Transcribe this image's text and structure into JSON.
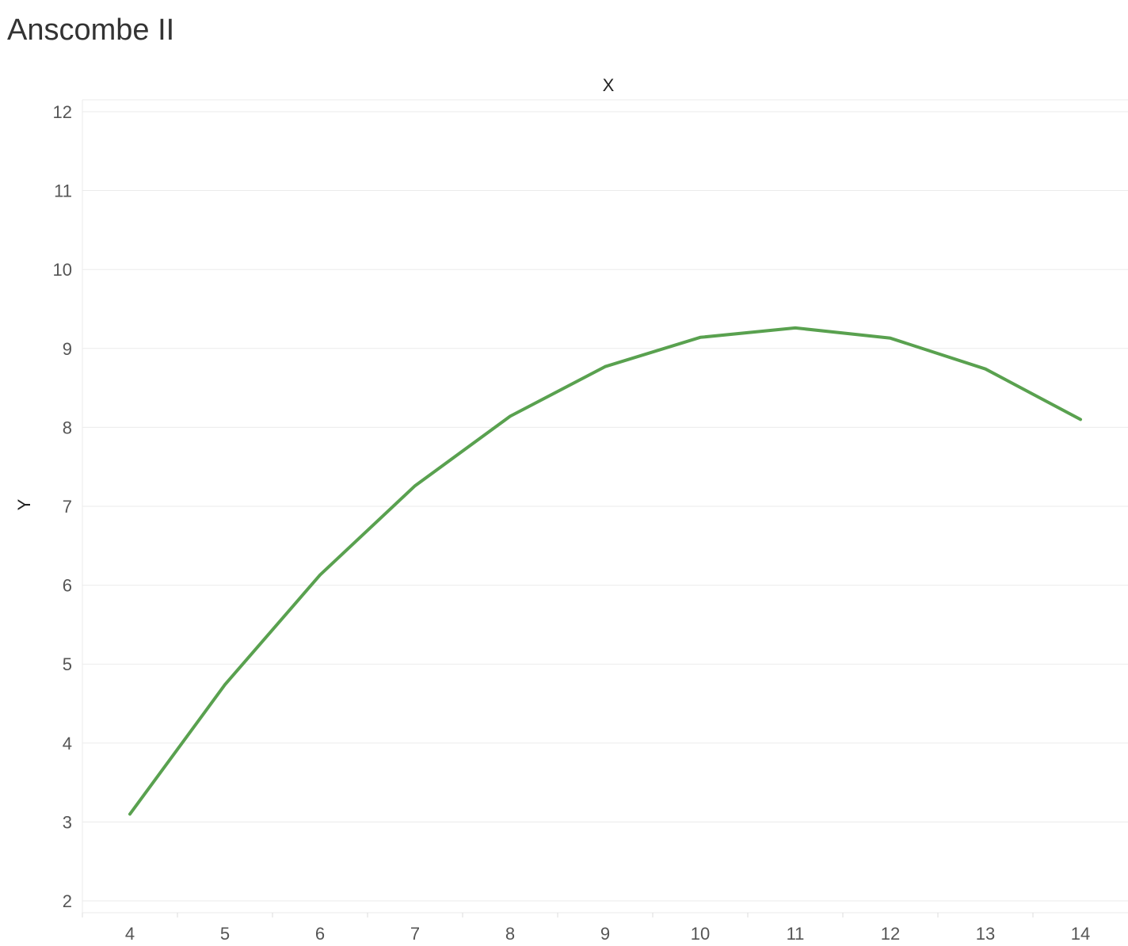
{
  "chart_data": {
    "type": "line",
    "title": "Anscombe II",
    "xlabel": "X",
    "ylabel": "Y",
    "x": [
      4,
      5,
      6,
      7,
      8,
      9,
      10,
      11,
      12,
      13,
      14
    ],
    "series": [
      {
        "values": [
          3.1,
          4.74,
          6.13,
          7.26,
          8.14,
          8.77,
          9.14,
          9.26,
          9.13,
          8.74,
          8.1
        ],
        "color": "#59a14f"
      }
    ],
    "xticks": [
      "4",
      "5",
      "6",
      "7",
      "8",
      "9",
      "10",
      "11",
      "12",
      "13",
      "14"
    ],
    "yticks": [
      "2",
      "3",
      "4",
      "5",
      "6",
      "7",
      "8",
      "9",
      "10",
      "11",
      "12"
    ],
    "xlim": [
      3.5,
      14.5
    ],
    "ylim": [
      1.85,
      12.15
    ],
    "grid": "horizontal",
    "xaxis_position": "top-title",
    "colors": {
      "line": "#59a14f",
      "grid": "#ebebeb",
      "tick_text": "#555555"
    }
  }
}
